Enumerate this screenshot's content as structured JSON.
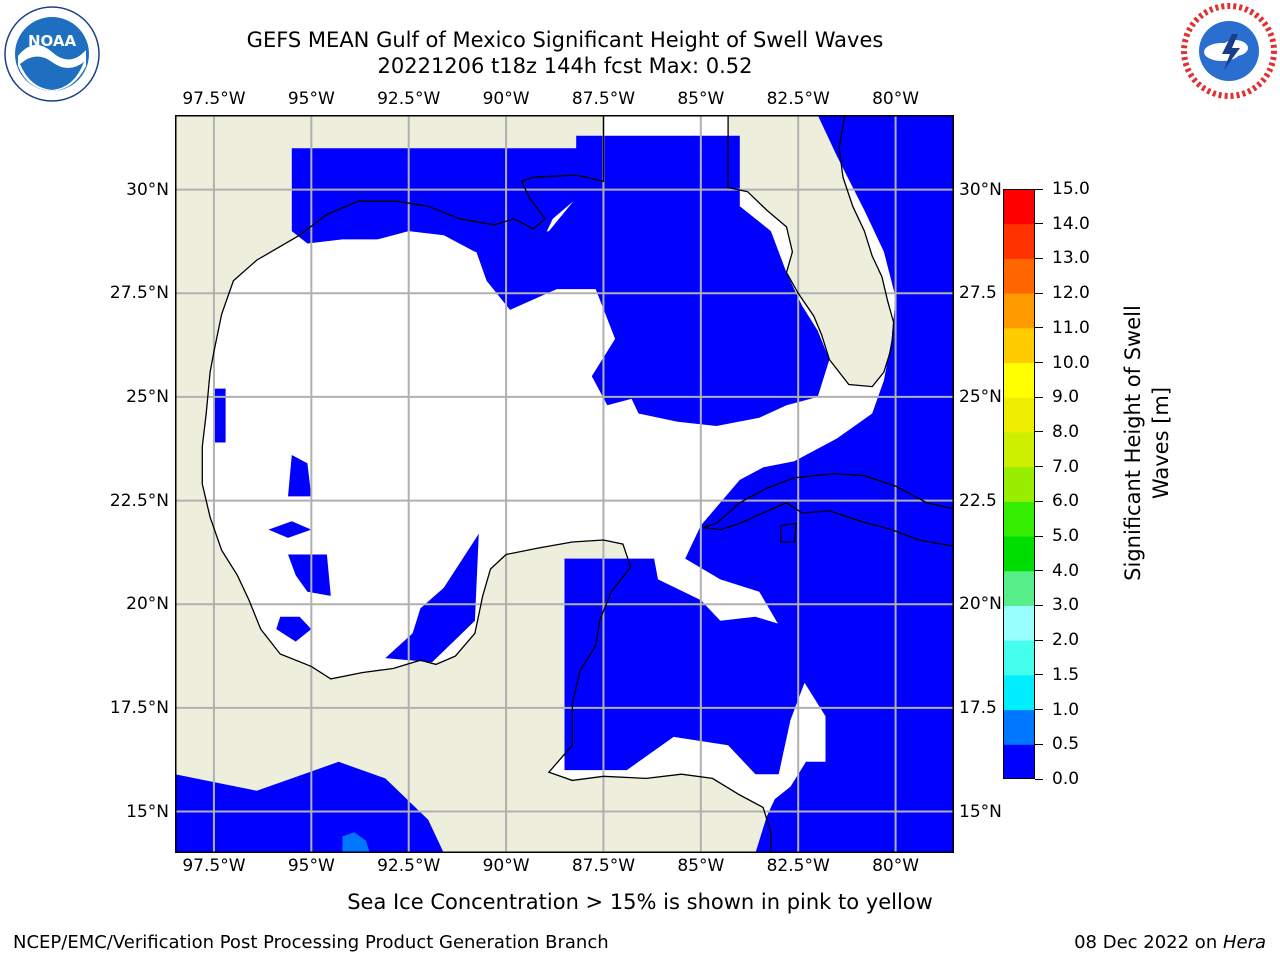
{
  "title": {
    "line1": "GEFS MEAN Gulf of Mexico Significant Height of Swell Waves",
    "line2": "20221206 t18z 144h fcst   Max: 0.52"
  },
  "logos": {
    "noaa": {
      "text": "NOAA",
      "ring_text": "NATIONAL OCEANIC AND ATMOSPHERIC ADMINISTRATION · U.S. DEPARTMENT OF COMMERCE"
    },
    "nws": {
      "ring_text": "NATIONAL WEATHER SERVICE"
    }
  },
  "map": {
    "extent": {
      "lon": [
        -98.5,
        -78.5
      ],
      "lat": [
        14.0,
        31.8
      ]
    },
    "lon_ticks": [
      {
        "value": -97.5,
        "label": "97.5°W"
      },
      {
        "value": -95.0,
        "label": "95°W"
      },
      {
        "value": -92.5,
        "label": "92.5°W"
      },
      {
        "value": -90.0,
        "label": "90°W"
      },
      {
        "value": -87.5,
        "label": "87.5°W"
      },
      {
        "value": -85.0,
        "label": "85°W"
      },
      {
        "value": -82.5,
        "label": "82.5°W"
      },
      {
        "value": -80.0,
        "label": "80°W"
      }
    ],
    "lat_ticks_left": [
      {
        "value": 30.0,
        "label": "30°N"
      },
      {
        "value": 27.5,
        "label": "27.5°N"
      },
      {
        "value": 25.0,
        "label": "25°N"
      },
      {
        "value": 22.5,
        "label": "22.5°N"
      },
      {
        "value": 20.0,
        "label": "20°N"
      },
      {
        "value": 17.5,
        "label": "17.5°N"
      },
      {
        "value": 15.0,
        "label": "15°N"
      }
    ],
    "lat_ticks_right": [
      {
        "value": 30.0,
        "label": "30°N"
      },
      {
        "value": 27.5,
        "label": "27.5"
      },
      {
        "value": 25.0,
        "label": "25°N"
      },
      {
        "value": 22.5,
        "label": "22.5"
      },
      {
        "value": 20.0,
        "label": "20°N"
      },
      {
        "value": 17.5,
        "label": "17.5"
      },
      {
        "value": 15.0,
        "label": "15°N"
      }
    ],
    "land_color": "#eeeedd",
    "grid_color": "#b0b0b0",
    "grid": true,
    "swell_field_color": "#0000ff",
    "swell_small_patch_color": "#0077ff",
    "land": [
      [
        [
          -98.5,
          31.8
        ],
        [
          -87.5,
          31.8
        ],
        [
          -87.5,
          30.2
        ],
        [
          -88.2,
          30.35
        ],
        [
          -89.3,
          30.3
        ],
        [
          -89.6,
          30.2
        ],
        [
          -89.4,
          29.8
        ],
        [
          -89.0,
          29.3
        ],
        [
          -89.3,
          29.05
        ],
        [
          -89.8,
          29.3
        ],
        [
          -90.3,
          29.15
        ],
        [
          -91.2,
          29.3
        ],
        [
          -92.0,
          29.6
        ],
        [
          -92.8,
          29.72
        ],
        [
          -93.8,
          29.72
        ],
        [
          -94.6,
          29.4
        ],
        [
          -95.3,
          28.9
        ],
        [
          -96.4,
          28.3
        ],
        [
          -97.0,
          27.8
        ],
        [
          -97.3,
          27.0
        ],
        [
          -97.5,
          26.1
        ],
        [
          -97.6,
          25.6
        ],
        [
          -97.7,
          24.6
        ],
        [
          -97.8,
          23.8
        ],
        [
          -97.8,
          22.9
        ],
        [
          -97.6,
          22.1
        ],
        [
          -97.3,
          21.3
        ],
        [
          -96.9,
          20.7
        ],
        [
          -96.6,
          20.1
        ],
        [
          -96.3,
          19.4
        ],
        [
          -95.8,
          18.8
        ],
        [
          -95.0,
          18.5
        ],
        [
          -94.5,
          18.2
        ],
        [
          -93.7,
          18.35
        ],
        [
          -92.9,
          18.45
        ],
        [
          -92.2,
          18.65
        ],
        [
          -91.8,
          18.55
        ],
        [
          -91.3,
          18.75
        ],
        [
          -90.8,
          19.3
        ],
        [
          -90.6,
          20.2
        ],
        [
          -90.4,
          20.85
        ],
        [
          -90.0,
          21.2
        ],
        [
          -89.2,
          21.35
        ],
        [
          -88.3,
          21.5
        ],
        [
          -87.5,
          21.55
        ],
        [
          -87.0,
          21.45
        ],
        [
          -86.8,
          20.9
        ],
        [
          -87.3,
          20.3
        ],
        [
          -87.6,
          19.6
        ],
        [
          -87.7,
          19.0
        ],
        [
          -88.1,
          18.4
        ],
        [
          -88.3,
          17.6
        ],
        [
          -88.3,
          16.6
        ],
        [
          -88.9,
          15.95
        ],
        [
          -88.3,
          15.75
        ],
        [
          -87.5,
          15.85
        ],
        [
          -86.4,
          15.8
        ],
        [
          -85.5,
          15.9
        ],
        [
          -84.7,
          15.8
        ],
        [
          -84.0,
          15.4
        ],
        [
          -83.4,
          15.1
        ],
        [
          -83.2,
          14.5
        ],
        [
          -83.2,
          14.0
        ],
        [
          -98.5,
          14.0
        ]
      ],
      [
        [
          -84.3,
          31.8
        ],
        [
          -84.3,
          30.05
        ],
        [
          -83.8,
          29.95
        ],
        [
          -83.3,
          29.5
        ],
        [
          -82.8,
          29.1
        ],
        [
          -82.65,
          28.5
        ],
        [
          -82.8,
          28.0
        ],
        [
          -82.5,
          27.5
        ],
        [
          -82.1,
          26.95
        ],
        [
          -81.9,
          26.5
        ],
        [
          -81.7,
          25.9
        ],
        [
          -81.2,
          25.3
        ],
        [
          -80.6,
          25.25
        ],
        [
          -80.3,
          25.6
        ],
        [
          -80.1,
          26.2
        ],
        [
          -80.05,
          26.8
        ],
        [
          -80.2,
          27.3
        ],
        [
          -80.35,
          27.9
        ],
        [
          -80.6,
          28.4
        ],
        [
          -80.8,
          29.0
        ],
        [
          -81.1,
          29.6
        ],
        [
          -81.35,
          30.3
        ],
        [
          -81.45,
          31.0
        ],
        [
          -81.3,
          31.8
        ]
      ],
      [
        [
          -84.95,
          21.85
        ],
        [
          -84.6,
          21.95
        ],
        [
          -84.0,
          22.45
        ],
        [
          -83.3,
          22.8
        ],
        [
          -82.6,
          23.05
        ],
        [
          -81.6,
          23.15
        ],
        [
          -80.8,
          23.1
        ],
        [
          -80.0,
          22.85
        ],
        [
          -79.2,
          22.45
        ],
        [
          -78.5,
          22.3
        ],
        [
          -78.5,
          21.4
        ],
        [
          -79.4,
          21.55
        ],
        [
          -80.1,
          21.8
        ],
        [
          -80.9,
          22.0
        ],
        [
          -81.7,
          22.25
        ],
        [
          -82.4,
          22.2
        ],
        [
          -82.8,
          22.45
        ],
        [
          -83.4,
          22.2
        ],
        [
          -84.0,
          21.95
        ],
        [
          -84.5,
          21.8
        ]
      ],
      [
        [
          -82.95,
          21.9
        ],
        [
          -82.55,
          21.95
        ],
        [
          -82.6,
          21.5
        ],
        [
          -82.95,
          21.5
        ]
      ]
    ],
    "swell_regions": [
      [
        [
          -95.5,
          31.0
        ],
        [
          -87.6,
          31.0
        ],
        [
          -87.6,
          29.6
        ],
        [
          -88.3,
          29.7
        ],
        [
          -88.8,
          29.3
        ],
        [
          -89.2,
          28.5
        ],
        [
          -90.0,
          28.4
        ],
        [
          -90.8,
          28.5
        ],
        [
          -91.6,
          28.9
        ],
        [
          -92.5,
          29.0
        ],
        [
          -93.3,
          28.8
        ],
        [
          -94.2,
          28.8
        ],
        [
          -95.1,
          28.7
        ],
        [
          -95.5,
          29.0
        ]
      ],
      [
        [
          -88.2,
          31.3
        ],
        [
          -84.0,
          31.3
        ],
        [
          -84.0,
          29.6
        ],
        [
          -83.2,
          29.0
        ],
        [
          -82.8,
          28.0
        ],
        [
          -82.4,
          27.2
        ],
        [
          -82.0,
          26.6
        ],
        [
          -81.7,
          25.9
        ],
        [
          -82.0,
          25.0
        ],
        [
          -82.8,
          24.8
        ],
        [
          -83.5,
          24.5
        ],
        [
          -84.6,
          24.3
        ],
        [
          -85.6,
          24.4
        ],
        [
          -86.6,
          24.6
        ],
        [
          -86.9,
          25.2
        ],
        [
          -86.6,
          25.9
        ],
        [
          -86.5,
          26.7
        ],
        [
          -85.6,
          27.2
        ],
        [
          -84.4,
          27.5
        ],
        [
          -84.4,
          27.0
        ],
        [
          -85.4,
          26.6
        ],
        [
          -86.3,
          26.3
        ],
        [
          -86.3,
          25.6
        ],
        [
          -86.6,
          25.0
        ],
        [
          -87.4,
          24.8
        ],
        [
          -87.8,
          25.5
        ],
        [
          -87.2,
          26.4
        ],
        [
          -87.7,
          27.6
        ],
        [
          -88.7,
          27.6
        ],
        [
          -89.9,
          27.1
        ],
        [
          -90.5,
          27.8
        ],
        [
          -90.8,
          28.6
        ],
        [
          -88.9,
          29.0
        ],
        [
          -88.2,
          29.8
        ]
      ],
      [
        [
          -82.0,
          31.8
        ],
        [
          -78.5,
          31.8
        ],
        [
          -78.5,
          14.0
        ],
        [
          -83.6,
          14.0
        ],
        [
          -83.3,
          14.9
        ],
        [
          -83.1,
          15.3
        ],
        [
          -82.7,
          15.6
        ],
        [
          -82.3,
          16.2
        ],
        [
          -81.8,
          16.2
        ],
        [
          -81.8,
          17.3
        ],
        [
          -82.6,
          18.5
        ],
        [
          -83.0,
          19.5
        ],
        [
          -83.5,
          20.3
        ],
        [
          -84.5,
          20.6
        ],
        [
          -85.4,
          21.1
        ],
        [
          -85.0,
          21.9
        ],
        [
          -84.0,
          23.0
        ],
        [
          -83.4,
          23.3
        ],
        [
          -82.6,
          23.45
        ],
        [
          -81.5,
          24.0
        ],
        [
          -80.6,
          24.6
        ],
        [
          -80.3,
          25.4
        ],
        [
          -80.1,
          26.4
        ],
        [
          -80.0,
          27.4
        ],
        [
          -80.3,
          28.5
        ],
        [
          -80.8,
          29.5
        ],
        [
          -81.5,
          30.8
        ]
      ],
      [
        [
          -88.5,
          21.1
        ],
        [
          -86.2,
          21.1
        ],
        [
          -86.1,
          20.6
        ],
        [
          -85.0,
          20.1
        ],
        [
          -84.5,
          19.6
        ],
        [
          -83.6,
          19.7
        ],
        [
          -82.9,
          19.5
        ],
        [
          -82.4,
          19.1
        ],
        [
          -82.3,
          18.2
        ],
        [
          -82.7,
          17.2
        ],
        [
          -83.0,
          15.9
        ],
        [
          -83.6,
          15.9
        ],
        [
          -84.3,
          16.6
        ],
        [
          -85.7,
          16.8
        ],
        [
          -86.9,
          16.0
        ],
        [
          -88.5,
          16.0
        ]
      ],
      [
        [
          -98.5,
          15.9
        ],
        [
          -96.4,
          15.5
        ],
        [
          -95.2,
          15.9
        ],
        [
          -94.3,
          16.2
        ],
        [
          -93.1,
          15.8
        ],
        [
          -92.0,
          14.8
        ],
        [
          -91.6,
          14.0
        ],
        [
          -98.5,
          14.0
        ]
      ],
      [
        [
          -91.6,
          20.4
        ],
        [
          -90.7,
          21.7
        ],
        [
          -90.8,
          19.6
        ],
        [
          -91.9,
          18.6
        ],
        [
          -93.1,
          18.7
        ],
        [
          -92.4,
          19.3
        ],
        [
          -92.2,
          19.9
        ]
      ],
      [
        [
          -95.6,
          22.6
        ],
        [
          -95.5,
          23.6
        ],
        [
          -95.1,
          23.4
        ],
        [
          -95.0,
          22.6
        ]
      ],
      [
        [
          -95.8,
          19.7
        ],
        [
          -95.3,
          19.7
        ],
        [
          -95.0,
          19.4
        ],
        [
          -95.4,
          19.1
        ],
        [
          -95.9,
          19.4
        ]
      ],
      [
        [
          -95.6,
          21.2
        ],
        [
          -94.6,
          21.2
        ],
        [
          -94.5,
          20.2
        ],
        [
          -95.1,
          20.3
        ],
        [
          -95.4,
          20.7
        ]
      ],
      [
        [
          -97.5,
          25.2
        ],
        [
          -97.2,
          25.2
        ],
        [
          -97.2,
          23.9
        ],
        [
          -97.5,
          23.9
        ]
      ],
      [
        [
          -96.1,
          21.8
        ],
        [
          -95.5,
          22.0
        ],
        [
          -95.0,
          21.8
        ],
        [
          -95.6,
          21.6
        ]
      ]
    ],
    "swell_small_patch": [
      [
        -93.9,
        14.5
      ],
      [
        -93.6,
        14.3
      ],
      [
        -93.5,
        14.0
      ],
      [
        -94.2,
        14.0
      ],
      [
        -94.2,
        14.4
      ]
    ]
  },
  "colorbar": {
    "label": "Significant Height of Swell Waves [m]",
    "label_lines": [
      "Significant Height of Swell",
      "Waves [m]"
    ],
    "ticks": [
      "0.0",
      "0.5",
      "1.0",
      "1.5",
      "2.0",
      "3.0",
      "4.0",
      "5.0",
      "6.0",
      "7.0",
      "8.0",
      "9.0",
      "10.0",
      "11.0",
      "12.0",
      "13.0",
      "14.0",
      "15.0"
    ],
    "colors": [
      "#0000ff",
      "#0077ff",
      "#00eeff",
      "#44ffee",
      "#99ffff",
      "#55ee88",
      "#00dd00",
      "#33ee00",
      "#99ee00",
      "#ccf000",
      "#eeee00",
      "#ffff00",
      "#ffcc00",
      "#ff9900",
      "#ff6600",
      "#ff3300",
      "#ff0000"
    ]
  },
  "annotation": "Sea Ice Concentration > 15% is shown in pink to yellow",
  "footer": {
    "left": "NCEP/EMC/Verification Post Processing Product Generation Branch",
    "date": "08 Dec 2022 on ",
    "host": "Hera"
  }
}
